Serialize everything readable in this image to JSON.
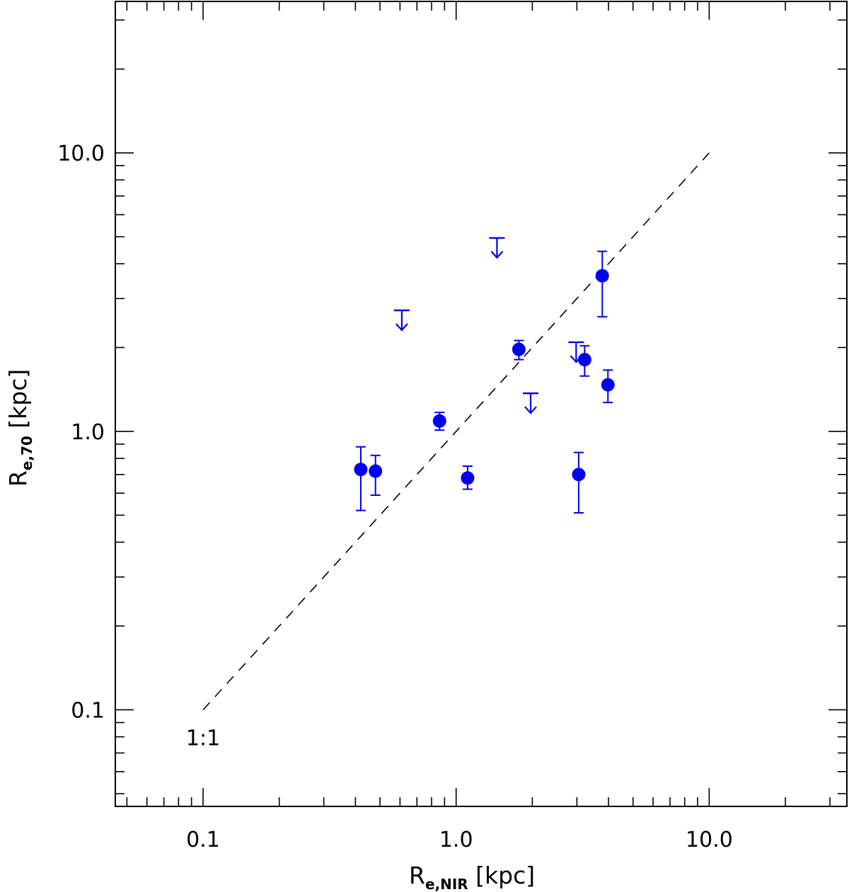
{
  "chart_data": {
    "type": "scatter",
    "xscale": "log",
    "yscale": "log",
    "xlim": [
      0.045,
      35
    ],
    "ylim": [
      0.045,
      35
    ],
    "x_ticks": [
      {
        "value": 0.1,
        "label": "0.1"
      },
      {
        "value": 1.0,
        "label": "1.0"
      },
      {
        "value": 10.0,
        "label": "10.0"
      }
    ],
    "y_ticks": [
      {
        "value": 0.1,
        "label": "0.1"
      },
      {
        "value": 1.0,
        "label": "1.0"
      },
      {
        "value": 10.0,
        "label": "10.0"
      }
    ],
    "xlabel": {
      "main": "R",
      "sub": "e,NIR",
      "tail": " [kpc]"
    },
    "ylabel": {
      "main": "R",
      "sub": "e,70",
      "tail": " [kpc]"
    },
    "reference_line": {
      "x": [
        0.1,
        10.0
      ],
      "y": [
        0.1,
        10.0
      ],
      "label": "1:1"
    },
    "marker_color": "#0000ee",
    "series": [
      {
        "kind": "measurements",
        "points": [
          {
            "x": 0.42,
            "y": 0.73,
            "yerr_low": 0.52,
            "yerr_high": 0.88
          },
          {
            "x": 0.48,
            "y": 0.72,
            "yerr_low": 0.59,
            "yerr_high": 0.82
          },
          {
            "x": 0.86,
            "y": 1.09,
            "yerr_low": 1.01,
            "yerr_high": 1.17
          },
          {
            "x": 1.11,
            "y": 0.68,
            "yerr_low": 0.62,
            "yerr_high": 0.75
          },
          {
            "x": 1.77,
            "y": 1.97,
            "yerr_low": 1.81,
            "yerr_high": 2.12
          },
          {
            "x": 3.05,
            "y": 0.7,
            "yerr_low": 0.51,
            "yerr_high": 0.84
          },
          {
            "x": 3.22,
            "y": 1.81,
            "yerr_low": 1.58,
            "yerr_high": 2.03
          },
          {
            "x": 3.78,
            "y": 3.62,
            "yerr_low": 2.58,
            "yerr_high": 4.43
          },
          {
            "x": 3.98,
            "y": 1.47,
            "yerr_low": 1.27,
            "yerr_high": 1.66
          }
        ]
      },
      {
        "kind": "upper_limits",
        "points": [
          {
            "x": 0.61,
            "y": 2.72
          },
          {
            "x": 1.45,
            "y": 4.95
          },
          {
            "x": 1.97,
            "y": 1.37
          },
          {
            "x": 2.98,
            "y": 2.09
          }
        ]
      }
    ]
  }
}
